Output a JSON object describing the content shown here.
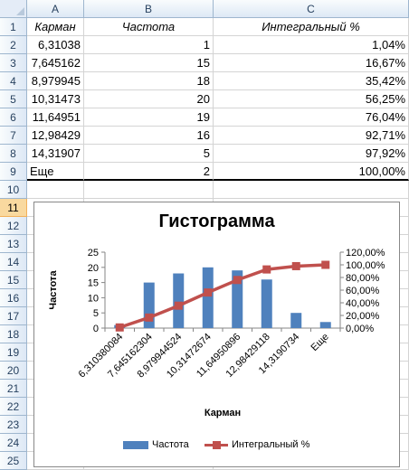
{
  "columns": [
    "A",
    "B",
    "C"
  ],
  "rows": [
    "1",
    "2",
    "3",
    "4",
    "5",
    "6",
    "7",
    "8",
    "9",
    "10",
    "11",
    "12",
    "13",
    "14",
    "15",
    "16",
    "17",
    "18",
    "19",
    "20",
    "21",
    "22",
    "23",
    "24",
    "25"
  ],
  "table": {
    "headers": [
      "Карман",
      "Частота",
      "Интегральный %"
    ],
    "data": [
      [
        "6,31038",
        "1",
        "1,04%"
      ],
      [
        "7,645162",
        "15",
        "16,67%"
      ],
      [
        "8,979945",
        "18",
        "35,42%"
      ],
      [
        "10,31473",
        "20",
        "56,25%"
      ],
      [
        "11,64951",
        "19",
        "76,04%"
      ],
      [
        "12,98429",
        "16",
        "92,71%"
      ],
      [
        "14,31907",
        "5",
        "97,92%"
      ],
      [
        "Еще",
        "2",
        "100,00%"
      ]
    ]
  },
  "chart_data": {
    "type": "bar",
    "title": "Гистограмма",
    "xlabel": "Карман",
    "ylabel": "Частота",
    "categories": [
      "6,310380084",
      "7,645162304",
      "8,979944524",
      "10,31472674",
      "11,64950896",
      "12,98429118",
      "14,3190734",
      "Еще"
    ],
    "series": [
      {
        "name": "Частота",
        "type": "bar",
        "color": "#4f81bd",
        "axis": "left",
        "values": [
          1,
          15,
          18,
          20,
          19,
          16,
          5,
          2
        ]
      },
      {
        "name": "Интегральный %",
        "type": "line",
        "color": "#c0504d",
        "axis": "right",
        "values": [
          1.04,
          16.67,
          35.42,
          56.25,
          76.04,
          92.71,
          97.92,
          100.0
        ]
      }
    ],
    "ylim": [
      0,
      25
    ],
    "yticks": [
      "0",
      "5",
      "10",
      "15",
      "20",
      "25"
    ],
    "y2lim": [
      0,
      120
    ],
    "y2ticks": [
      "0,00%",
      "20,00%",
      "40,00%",
      "60,00%",
      "80,00%",
      "100,00%",
      "120,00%"
    ],
    "legend": "bottom"
  }
}
